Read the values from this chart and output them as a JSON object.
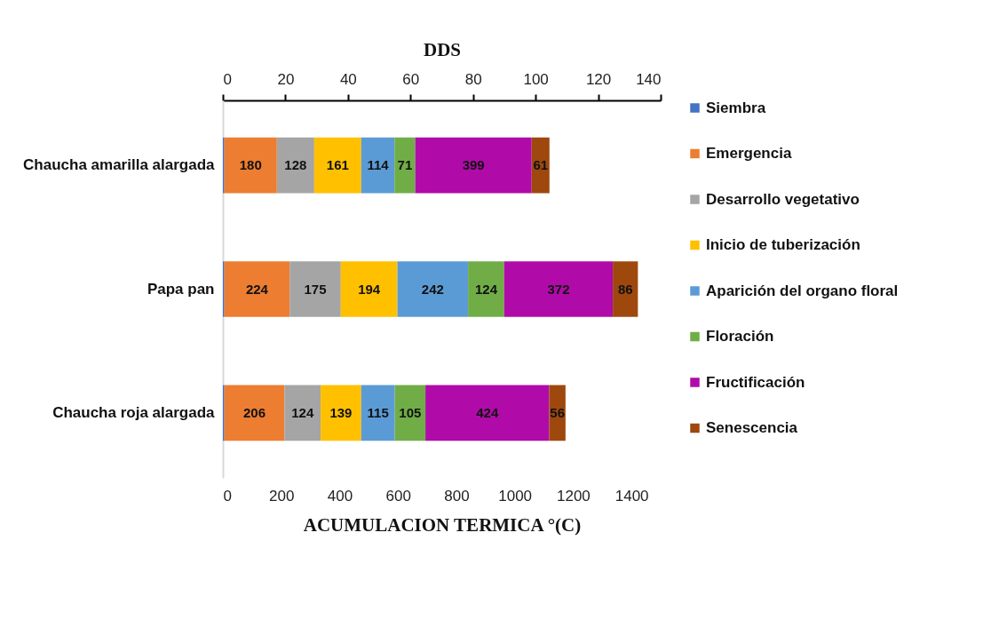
{
  "chart_data": {
    "type": "bar",
    "orientation": "horizontal",
    "stacked": true,
    "categories": [
      "Chaucha amarilla alargada",
      "Papa pan",
      "Chaucha roja alargada"
    ],
    "series": [
      {
        "name": "Siembra",
        "color": "#4472c4",
        "values": [
          5,
          5,
          5
        ],
        "value_labels": [
          null,
          null,
          null
        ]
      },
      {
        "name": "Emergencia",
        "color": "#ed7d31",
        "values": [
          180,
          224,
          206
        ],
        "value_labels": [
          "180",
          "224",
          "206"
        ]
      },
      {
        "name": "Desarrollo vegetativo",
        "color": "#a5a5a5",
        "values": [
          128,
          175,
          124
        ],
        "value_labels": [
          "128",
          "175",
          "124"
        ]
      },
      {
        "name": "Inicio de tuberización",
        "color": "#ffc000",
        "values": [
          161,
          194,
          139
        ],
        "value_labels": [
          "161",
          "194",
          "139"
        ]
      },
      {
        "name": "Aparición del organo floral",
        "color": "#5b9bd5",
        "values": [
          114,
          242,
          115
        ],
        "value_labels": [
          "114",
          "242",
          "115"
        ]
      },
      {
        "name": "Floración",
        "color": "#70ad47",
        "values": [
          71,
          124,
          105
        ],
        "value_labels": [
          "71",
          "124",
          "105"
        ]
      },
      {
        "name": "Fructificación",
        "color": "#b00ba8",
        "values": [
          399,
          372,
          424
        ],
        "value_labels": [
          "399",
          "372",
          "424"
        ]
      },
      {
        "name": "Senescencia",
        "color": "#9e480e",
        "values": [
          61,
          86,
          56
        ],
        "value_labels": [
          "61",
          "86",
          "56"
        ]
      }
    ],
    "xlabel": "ACUMULACION TERMICA °(C)",
    "xlim": [
      0,
      1500
    ],
    "xticks": [
      0,
      200,
      400,
      600,
      800,
      1000,
      1200,
      1400
    ],
    "x2label": "DDS",
    "x2lim": [
      0,
      140
    ],
    "x2ticks": [
      0,
      20,
      40,
      60,
      80,
      100,
      120,
      140
    ],
    "grid": false,
    "legend": "right"
  }
}
